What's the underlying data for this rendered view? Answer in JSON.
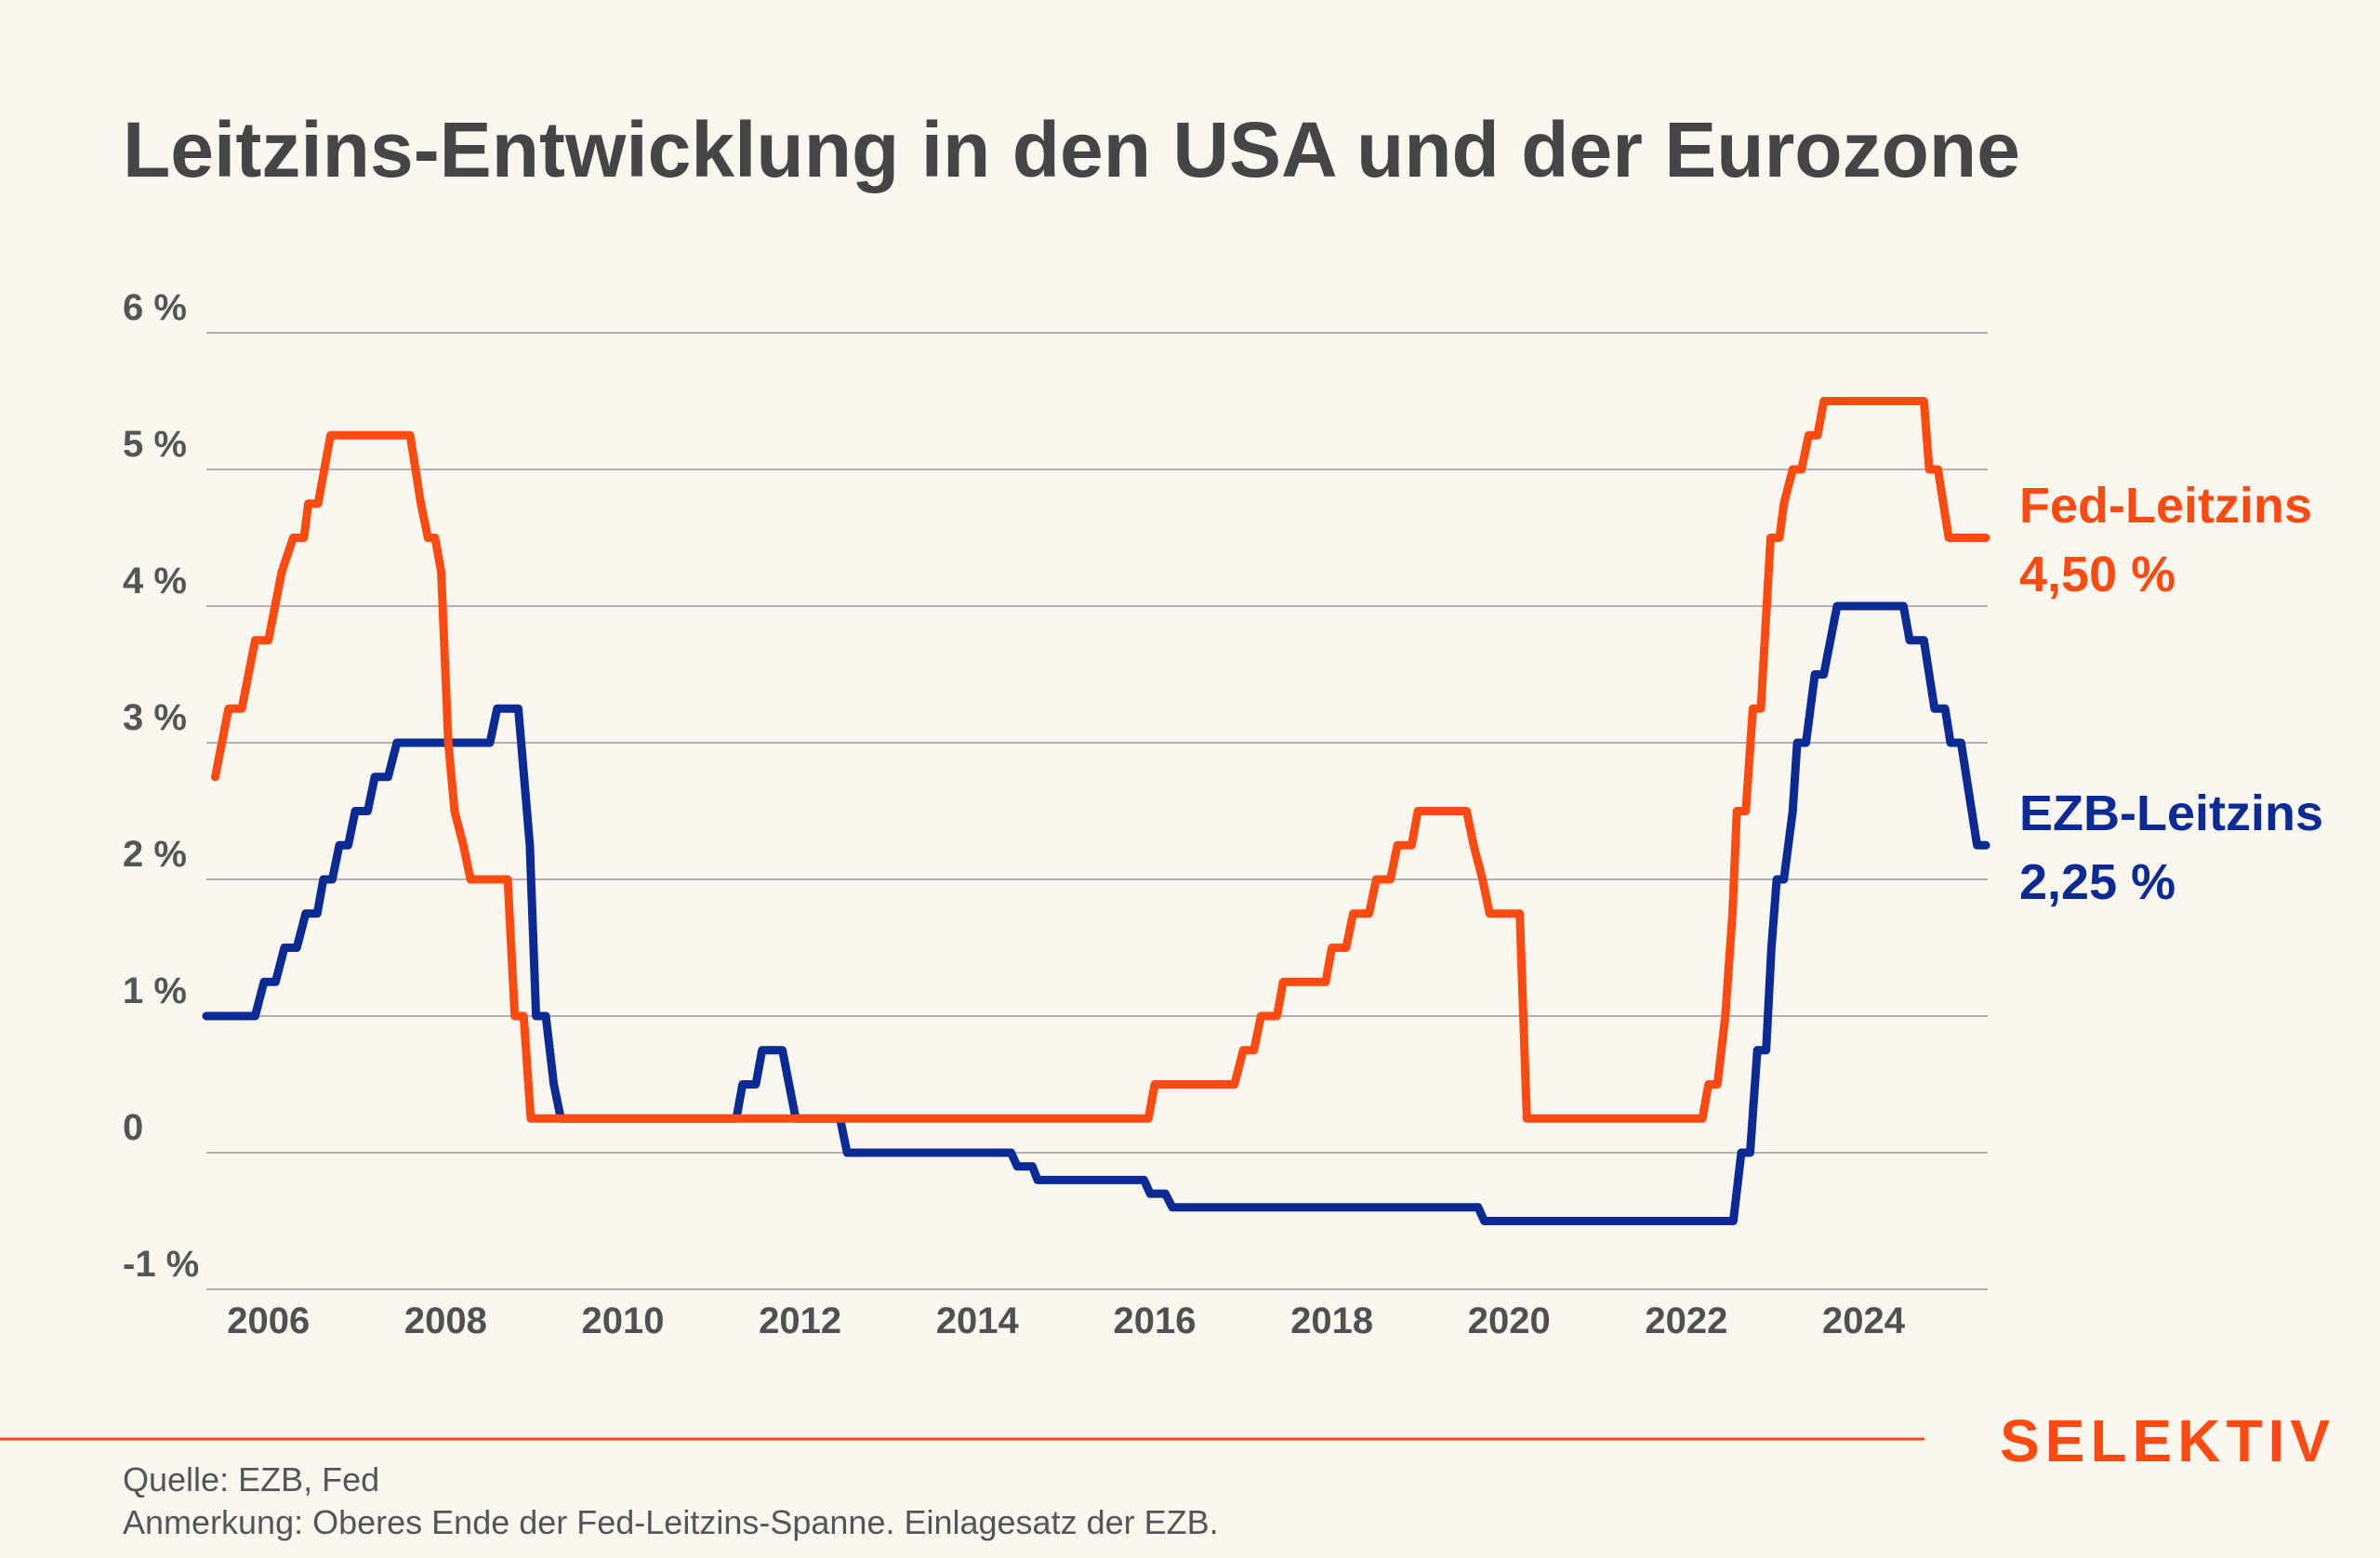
{
  "colors": {
    "fed": "#ff4a11",
    "ezb": "#0b2a94",
    "grid": "#9a9a9a",
    "brand": "#ff4a11"
  },
  "chart_data": {
    "type": "line",
    "title": "Leitzins-Entwicklung in den USA und der Eurozone",
    "xlabel": "",
    "ylabel": "",
    "xlim": [
      2005.3,
      2025.4
    ],
    "ylim": [
      -1,
      6
    ],
    "grid": true,
    "x_ticks": [
      {
        "value": 2006,
        "label": "2006"
      },
      {
        "value": 2008,
        "label": "2008"
      },
      {
        "value": 2010,
        "label": "2010"
      },
      {
        "value": 2012,
        "label": "2012"
      },
      {
        "value": 2014,
        "label": "2014"
      },
      {
        "value": 2016,
        "label": "2016"
      },
      {
        "value": 2018,
        "label": "2018"
      },
      {
        "value": 2020,
        "label": "2020"
      },
      {
        "value": 2022,
        "label": "2022"
      },
      {
        "value": 2024,
        "label": "2024"
      }
    ],
    "y_ticks": [
      {
        "value": 6,
        "label": "6 %"
      },
      {
        "value": 5,
        "label": "5 %"
      },
      {
        "value": 4,
        "label": "4 %"
      },
      {
        "value": 3,
        "label": "3 %"
      },
      {
        "value": 2,
        "label": "2 %"
      },
      {
        "value": 1,
        "label": "1 %"
      },
      {
        "value": 0,
        "label": "0"
      },
      {
        "value": -1,
        "label": "-1 %"
      }
    ],
    "series": [
      {
        "name": "Fed-Leitzins",
        "end_label": "4,50 %",
        "color": "#ff4a11",
        "points": [
          [
            2005.4,
            2.75
          ],
          [
            2005.55,
            3.25
          ],
          [
            2005.7,
            3.25
          ],
          [
            2005.85,
            3.75
          ],
          [
            2006.0,
            3.75
          ],
          [
            2006.15,
            4.25
          ],
          [
            2006.28,
            4.5
          ],
          [
            2006.4,
            4.5
          ],
          [
            2006.45,
            4.75
          ],
          [
            2006.56,
            4.75
          ],
          [
            2006.7,
            5.25
          ],
          [
            2007.6,
            5.25
          ],
          [
            2007.72,
            4.75
          ],
          [
            2007.8,
            4.5
          ],
          [
            2007.88,
            4.5
          ],
          [
            2007.95,
            4.25
          ],
          [
            2008.03,
            3.0
          ],
          [
            2008.1,
            2.5
          ],
          [
            2008.2,
            2.25
          ],
          [
            2008.28,
            2.0
          ],
          [
            2008.7,
            2.0
          ],
          [
            2008.78,
            1.0
          ],
          [
            2008.88,
            1.0
          ],
          [
            2008.96,
            0.25
          ],
          [
            2015.93,
            0.25
          ],
          [
            2016.0,
            0.5
          ],
          [
            2016.9,
            0.5
          ],
          [
            2017.0,
            0.75
          ],
          [
            2017.12,
            0.75
          ],
          [
            2017.2,
            1.0
          ],
          [
            2017.38,
            1.0
          ],
          [
            2017.45,
            1.25
          ],
          [
            2017.93,
            1.25
          ],
          [
            2018.0,
            1.5
          ],
          [
            2018.16,
            1.5
          ],
          [
            2018.24,
            1.75
          ],
          [
            2018.42,
            1.75
          ],
          [
            2018.5,
            2.0
          ],
          [
            2018.66,
            2.0
          ],
          [
            2018.74,
            2.25
          ],
          [
            2018.9,
            2.25
          ],
          [
            2018.97,
            2.5
          ],
          [
            2019.52,
            2.5
          ],
          [
            2019.6,
            2.25
          ],
          [
            2019.7,
            2.0
          ],
          [
            2019.78,
            1.75
          ],
          [
            2020.12,
            1.75
          ],
          [
            2020.2,
            0.25
          ],
          [
            2022.18,
            0.25
          ],
          [
            2022.25,
            0.5
          ],
          [
            2022.35,
            0.5
          ],
          [
            2022.44,
            1.0
          ],
          [
            2022.52,
            1.75
          ],
          [
            2022.57,
            2.5
          ],
          [
            2022.67,
            2.5
          ],
          [
            2022.75,
            3.25
          ],
          [
            2022.84,
            3.25
          ],
          [
            2022.95,
            4.5
          ],
          [
            2023.05,
            4.5
          ],
          [
            2023.1,
            4.75
          ],
          [
            2023.2,
            5.0
          ],
          [
            2023.3,
            5.0
          ],
          [
            2023.38,
            5.25
          ],
          [
            2023.48,
            5.25
          ],
          [
            2023.55,
            5.5
          ],
          [
            2024.68,
            5.5
          ],
          [
            2024.74,
            5.0
          ],
          [
            2024.84,
            5.0
          ],
          [
            2024.9,
            4.75
          ],
          [
            2024.96,
            4.5
          ],
          [
            2025.38,
            4.5
          ]
        ]
      },
      {
        "name": "EZB-Leitzins",
        "end_label": "2,25 %",
        "color": "#0b2a94",
        "points": [
          [
            2005.3,
            1.0
          ],
          [
            2005.85,
            1.0
          ],
          [
            2005.95,
            1.25
          ],
          [
            2006.08,
            1.25
          ],
          [
            2006.18,
            1.5
          ],
          [
            2006.32,
            1.5
          ],
          [
            2006.42,
            1.75
          ],
          [
            2006.55,
            1.75
          ],
          [
            2006.62,
            2.0
          ],
          [
            2006.72,
            2.0
          ],
          [
            2006.8,
            2.25
          ],
          [
            2006.9,
            2.25
          ],
          [
            2006.98,
            2.5
          ],
          [
            2007.12,
            2.5
          ],
          [
            2007.2,
            2.75
          ],
          [
            2007.35,
            2.75
          ],
          [
            2007.45,
            3.0
          ],
          [
            2008.5,
            3.0
          ],
          [
            2008.58,
            3.25
          ],
          [
            2008.82,
            3.25
          ],
          [
            2008.95,
            2.25
          ],
          [
            2009.02,
            1.0
          ],
          [
            2009.13,
            1.0
          ],
          [
            2009.22,
            0.5
          ],
          [
            2009.3,
            0.25
          ],
          [
            2011.28,
            0.25
          ],
          [
            2011.35,
            0.5
          ],
          [
            2011.5,
            0.5
          ],
          [
            2011.57,
            0.75
          ],
          [
            2011.8,
            0.75
          ],
          [
            2011.95,
            0.25
          ],
          [
            2012.45,
            0.25
          ],
          [
            2012.53,
            0.0
          ],
          [
            2014.38,
            0.0
          ],
          [
            2014.45,
            -0.1
          ],
          [
            2014.62,
            -0.1
          ],
          [
            2014.68,
            -0.2
          ],
          [
            2015.88,
            -0.2
          ],
          [
            2015.95,
            -0.3
          ],
          [
            2016.12,
            -0.3
          ],
          [
            2016.2,
            -0.4
          ],
          [
            2019.65,
            -0.4
          ],
          [
            2019.72,
            -0.5
          ],
          [
            2022.53,
            -0.5
          ],
          [
            2022.62,
            0.0
          ],
          [
            2022.72,
            0.0
          ],
          [
            2022.8,
            0.75
          ],
          [
            2022.9,
            0.75
          ],
          [
            2022.96,
            1.5
          ],
          [
            2023.02,
            2.0
          ],
          [
            2023.1,
            2.0
          ],
          [
            2023.2,
            2.5
          ],
          [
            2023.25,
            3.0
          ],
          [
            2023.35,
            3.0
          ],
          [
            2023.45,
            3.5
          ],
          [
            2023.55,
            3.5
          ],
          [
            2023.7,
            4.0
          ],
          [
            2024.45,
            4.0
          ],
          [
            2024.52,
            3.75
          ],
          [
            2024.68,
            3.75
          ],
          [
            2024.8,
            3.25
          ],
          [
            2024.92,
            3.25
          ],
          [
            2024.98,
            3.0
          ],
          [
            2025.1,
            3.0
          ],
          [
            2025.28,
            2.25
          ],
          [
            2025.38,
            2.25
          ]
        ]
      }
    ]
  },
  "footer": {
    "source": "Quelle: EZB, Fed",
    "note": "Anmerkung: Oberes Ende der Fed-Leitzins-Spanne. Einlagesatz der EZB.",
    "brand_logo": "SELEKTIV"
  }
}
